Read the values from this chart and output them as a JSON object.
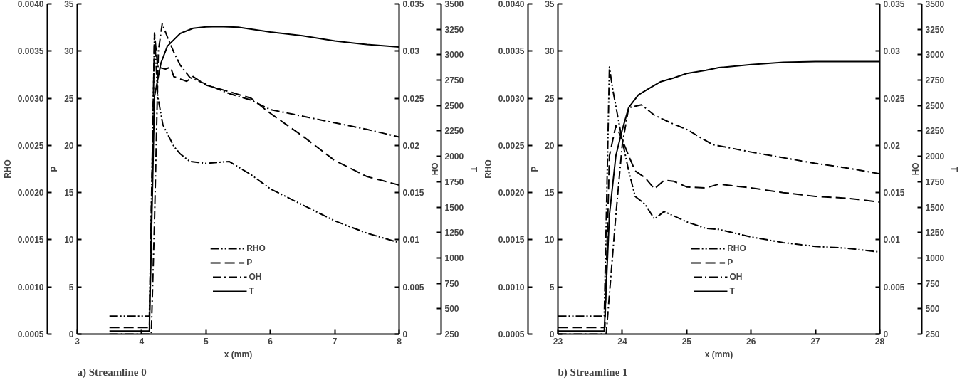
{
  "chart_data": [
    {
      "type": "line",
      "title": "a) Streamline 0",
      "xlabel": "x (mm)",
      "ylabel": "RHO",
      "y2label": "P",
      "xlim": [
        3,
        8
      ],
      "xticks": [
        3,
        4,
        5,
        6,
        7,
        8
      ],
      "ylim": [
        0.0005,
        0.004
      ],
      "yticks": [
        {
          "value": 0.0005,
          "label": "0.0005"
        },
        {
          "value": 0.001,
          "label": "0.0010"
        },
        {
          "value": 0.0015,
          "label": "0.0015"
        },
        {
          "value": 0.002,
          "label": "0.0020"
        },
        {
          "value": 0.0025,
          "label": "0.0025"
        },
        {
          "value": 0.003,
          "label": "0.0030"
        },
        {
          "value": 0.0035,
          "label": "0.0035"
        },
        {
          "value": 0.004,
          "label": "0.0040"
        }
      ],
      "y2lim": [
        0,
        35
      ],
      "y2ticks": [
        0,
        5,
        10,
        15,
        20,
        25,
        30,
        35
      ],
      "grid": false,
      "legend": "bottom",
      "series": [
        {
          "name": "RHO",
          "color": "#000000",
          "line_style": "dashdotdot",
          "x": [
            3.5,
            4.12,
            4.2,
            4.25,
            4.33,
            4.5,
            4.6,
            4.75,
            5.0,
            5.36,
            5.7,
            6.0,
            6.5,
            7.0,
            7.5,
            8.0
          ],
          "values": [
            0.00069,
            0.00069,
            0.00369,
            0.00302,
            0.00272,
            0.00249,
            0.00241,
            0.00233,
            0.00231,
            0.00233,
            0.00219,
            0.00204,
            0.00187,
            0.0017,
            0.00157,
            0.00147
          ]
        },
        {
          "name": "P",
          "color": "#000000",
          "axis": "y2",
          "line_style": "dashed",
          "x": [
            3.5,
            4.12,
            4.2,
            4.25,
            4.37,
            4.45,
            4.5,
            4.7,
            4.8,
            5.0,
            5.36,
            5.7,
            6.0,
            6.5,
            7.0,
            7.5,
            8.0
          ],
          "values": [
            0.7,
            0.7,
            31.9,
            28.3,
            28.1,
            28.3,
            27.3,
            26.8,
            27.3,
            26.4,
            25.7,
            25.0,
            23.4,
            21.0,
            18.4,
            16.7,
            15.8
          ]
        }
      ]
    },
    {
      "type": "line",
      "y2label": "OH",
      "y3label": "T",
      "tick_labels": "y",
      "xlim": [
        3,
        8
      ],
      "y2lim": [
        0,
        0.035
      ],
      "y2ticks": [
        0,
        0.005,
        0.01,
        0.015,
        0.02,
        0.025,
        0.03,
        0.035
      ],
      "y3lim": [
        250,
        3500
      ],
      "y3ticks": [
        250,
        500,
        750,
        1000,
        1250,
        1500,
        1750,
        2000,
        2250,
        2500,
        2750,
        3000,
        3250,
        3500
      ],
      "grid": false,
      "legend": "bottom",
      "series": [
        {
          "name": "OH",
          "color": "#000000",
          "axis": "y2",
          "line_style": "dashdot",
          "x": [
            3.5,
            4.15,
            4.2,
            4.26,
            4.32,
            4.4,
            4.5,
            4.6,
            4.75,
            5.0,
            5.36,
            5.7,
            6.0,
            6.5,
            7.0,
            7.5,
            8.0
          ],
          "values": [
            0,
            0,
            0.012,
            0.03,
            0.0329,
            0.0315,
            0.0299,
            0.0285,
            0.0272,
            0.0265,
            0.0255,
            0.0248,
            0.0238,
            0.0231,
            0.0224,
            0.0217,
            0.0209
          ]
        },
        {
          "name": "T",
          "color": "#000000",
          "axis": "y3",
          "line_style": "solid",
          "x": [
            3.5,
            4.12,
            4.2,
            4.3,
            4.4,
            4.6,
            4.8,
            5.0,
            5.2,
            5.5,
            6.0,
            6.5,
            7.0,
            7.5,
            8.0
          ],
          "values": [
            280,
            280,
            2590,
            2918,
            3084,
            3209,
            3260,
            3274,
            3278,
            3270,
            3223,
            3187,
            3136,
            3100,
            3077
          ]
        }
      ]
    },
    {
      "type": "line",
      "title": "b) Streamline 1",
      "xlabel": "x (mm)",
      "ylabel": "RHO",
      "y2label": "P",
      "xlim": [
        23,
        28
      ],
      "xticks": [
        23,
        24,
        25,
        26,
        27,
        28
      ],
      "ylim": [
        0.0005,
        0.004
      ],
      "yticks": [
        {
          "value": 0.0005,
          "label": "0.0005"
        },
        {
          "value": 0.001,
          "label": "0.0010"
        },
        {
          "value": 0.0015,
          "label": "0.0015"
        },
        {
          "value": 0.002,
          "label": "0.0020"
        },
        {
          "value": 0.0025,
          "label": "0.0025"
        },
        {
          "value": 0.003,
          "label": "0.0030"
        },
        {
          "value": 0.0035,
          "label": "0.0035"
        },
        {
          "value": 0.004,
          "label": "0.0040"
        }
      ],
      "y2lim": [
        0,
        35
      ],
      "y2ticks": [
        0,
        5,
        10,
        15,
        20,
        25,
        30,
        35
      ],
      "grid": false,
      "legend": "bottom",
      "series": [
        {
          "name": "RHO",
          "color": "#000000",
          "line_style": "dashdotdot",
          "x": [
            23.0,
            23.72,
            23.8,
            23.85,
            24.0,
            24.1,
            24.2,
            24.35,
            24.5,
            24.65,
            25.0,
            25.3,
            25.5,
            26.0,
            26.5,
            27.0,
            27.5,
            28.0
          ],
          "values": [
            0.00069,
            0.00069,
            0.00333,
            0.0031,
            0.00255,
            0.00223,
            0.00196,
            0.00188,
            0.00172,
            0.0018,
            0.00169,
            0.00162,
            0.00161,
            0.00153,
            0.00147,
            0.00143,
            0.00141,
            0.00137
          ]
        },
        {
          "name": "P",
          "color": "#000000",
          "axis": "y2",
          "line_style": "dashed",
          "x": [
            23.0,
            23.73,
            23.8,
            23.9,
            24.0,
            24.1,
            24.2,
            24.35,
            24.5,
            24.65,
            24.8,
            25.0,
            25.3,
            25.5,
            26.0,
            26.5,
            27.0,
            27.5,
            28.0
          ],
          "values": [
            0.7,
            0.7,
            18.9,
            22.1,
            20.6,
            18.9,
            17.3,
            16.6,
            15.4,
            16.3,
            16.2,
            15.6,
            15.5,
            15.9,
            15.5,
            15.0,
            14.6,
            14.4,
            14.0
          ]
        }
      ]
    },
    {
      "type": "line",
      "y2label": "OH",
      "y3label": "T",
      "tick_labels": "y",
      "xlim": [
        23,
        28
      ],
      "y2lim": [
        0,
        0.035
      ],
      "y2ticks": [
        0,
        0.005,
        0.01,
        0.015,
        0.02,
        0.025,
        0.03,
        0.035
      ],
      "y3lim": [
        250,
        3500
      ],
      "y3ticks": [
        250,
        500,
        750,
        1000,
        1250,
        1500,
        1750,
        2000,
        2250,
        2500,
        2750,
        3000,
        3250,
        3500
      ],
      "grid": false,
      "legend": "bottom",
      "series": [
        {
          "name": "OH",
          "color": "#000000",
          "axis": "y2",
          "line_style": "dashdot",
          "x": [
            23.0,
            23.75,
            23.9,
            24.0,
            24.1,
            24.3,
            24.5,
            24.75,
            25.0,
            25.4,
            26.0,
            26.5,
            27.0,
            27.5,
            28.0
          ],
          "values": [
            0,
            0,
            0.0126,
            0.0201,
            0.024,
            0.0243,
            0.0232,
            0.0224,
            0.0217,
            0.0201,
            0.0193,
            0.0187,
            0.0181,
            0.0176,
            0.017
          ]
        },
        {
          "name": "T",
          "color": "#000000",
          "axis": "y3",
          "line_style": "solid",
          "x": [
            23.0,
            23.72,
            23.8,
            23.9,
            24.0,
            24.1,
            24.25,
            24.4,
            24.6,
            24.8,
            25.0,
            25.3,
            25.5,
            26.0,
            26.5,
            27.0,
            28.0
          ],
          "values": [
            280,
            280,
            1423,
            2006,
            2261,
            2480,
            2604,
            2662,
            2735,
            2772,
            2815,
            2847,
            2873,
            2903,
            2925,
            2932,
            2932
          ]
        }
      ]
    }
  ]
}
